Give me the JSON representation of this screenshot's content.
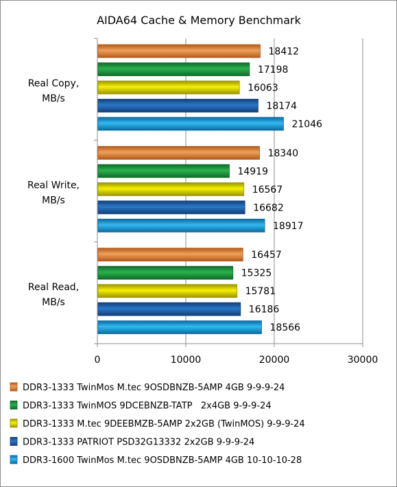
{
  "chart_data": {
    "type": "bar",
    "orientation": "horizontal",
    "title": "AIDA64 Cache & Memory Benchmark",
    "categories": [
      [
        "Real Copy,",
        "MB/s"
      ],
      [
        "Real Write,",
        "MB/s"
      ],
      [
        "Real Read,",
        "MB/s"
      ]
    ],
    "series": [
      {
        "name": "DDR3-1333 TwinMos M.tec 9OSDBNZB-5AMP 4GB 9-9-9-24",
        "color": "#f0a05a",
        "color_dark": "#b05a1c",
        "values": [
          18412,
          18340,
          16457
        ]
      },
      {
        "name": "DDR3-1333 TwinMOS 9DCEBNZB-TATP   2x4GB 9-9-9-24",
        "color": "#2bb24d",
        "color_dark": "#0f6a2a",
        "values": [
          17198,
          14919,
          15325
        ]
      },
      {
        "name": "DDR3-1333 M.tec 9DEEBMZB-5AMP 2x2GB (TwinMOS) 9-9-9-24",
        "color": "#f6f200",
        "color_dark": "#9a9400",
        "values": [
          16063,
          16567,
          15781
        ]
      },
      {
        "name": "DDR3-1333 PATRIOT PSD32G13332 2x2GB 9-9-9-24",
        "color": "#2a78c8",
        "color_dark": "#123f78",
        "values": [
          18174,
          16682,
          16186
        ]
      },
      {
        "name": "DDR3-1600 TwinMos M.tec 9OSDBNZB-5AMP 4GB 10-10-10-28",
        "color": "#33b8f0",
        "color_dark": "#0a6aa0",
        "values": [
          21046,
          18917,
          18566
        ]
      }
    ],
    "xlim": [
      0,
      30000
    ],
    "xticks": [
      "0",
      "10000",
      "20000",
      "30000"
    ],
    "grid": true,
    "legend_position": "bottom"
  }
}
